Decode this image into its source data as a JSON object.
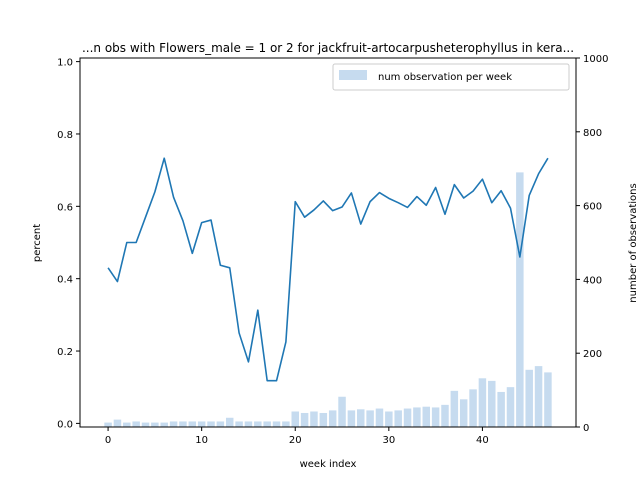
{
  "chart_data": {
    "type": "bar+line",
    "title": "...n obs with Flowers_male = 1 or 2 for jackfruit-artocarpusheterophyllus in kera...",
    "xlabel": "week index",
    "ylabel_left": "percent",
    "ylabel_right": "number of observations",
    "xlim": [
      -3,
      50
    ],
    "ylim_left": [
      -0.01,
      1.01
    ],
    "ylim_right": [
      0,
      1000
    ],
    "xticks": [
      0,
      10,
      20,
      30,
      40
    ],
    "yticks_left": [
      0.0,
      0.2,
      0.4,
      0.6,
      0.8,
      1.0
    ],
    "yticks_left_labels": [
      "0.0",
      "0.2",
      "0.4",
      "0.6",
      "0.8",
      "1.0"
    ],
    "yticks_right": [
      0,
      200,
      400,
      600,
      800,
      1000
    ],
    "legend": {
      "label": "num observation per week",
      "position": "top-right"
    },
    "colors": {
      "line": "#1f77b4",
      "bar": "#c6dbef"
    },
    "weeks": [
      0,
      1,
      2,
      3,
      4,
      5,
      6,
      7,
      8,
      9,
      10,
      11,
      12,
      13,
      14,
      15,
      16,
      17,
      18,
      19,
      20,
      21,
      22,
      23,
      24,
      25,
      26,
      27,
      28,
      29,
      30,
      31,
      32,
      33,
      34,
      35,
      36,
      37,
      38,
      39,
      40,
      41,
      42,
      43,
      44,
      45,
      46,
      47
    ],
    "percent": [
      0.43,
      0.392,
      0.5,
      0.5,
      0.57,
      0.64,
      0.733,
      0.625,
      0.56,
      0.47,
      0.555,
      0.562,
      0.437,
      0.43,
      0.25,
      0.17,
      0.313,
      0.118,
      0.118,
      0.225,
      0.613,
      0.57,
      0.59,
      0.615,
      0.588,
      0.598,
      0.637,
      0.551,
      0.613,
      0.638,
      0.622,
      0.61,
      0.597,
      0.627,
      0.603,
      0.652,
      0.578,
      0.66,
      0.623,
      0.642,
      0.675,
      0.61,
      0.643,
      0.595,
      0.46,
      0.63,
      0.69,
      0.733
    ],
    "observations": [
      12,
      20,
      12,
      15,
      12,
      12,
      12,
      15,
      15,
      15,
      15,
      15,
      15,
      25,
      15,
      15,
      15,
      15,
      15,
      15,
      42,
      38,
      42,
      38,
      45,
      82,
      45,
      48,
      45,
      50,
      42,
      45,
      50,
      53,
      55,
      53,
      60,
      98,
      75,
      102,
      132,
      125,
      95,
      108,
      690,
      155,
      165,
      148
    ]
  }
}
